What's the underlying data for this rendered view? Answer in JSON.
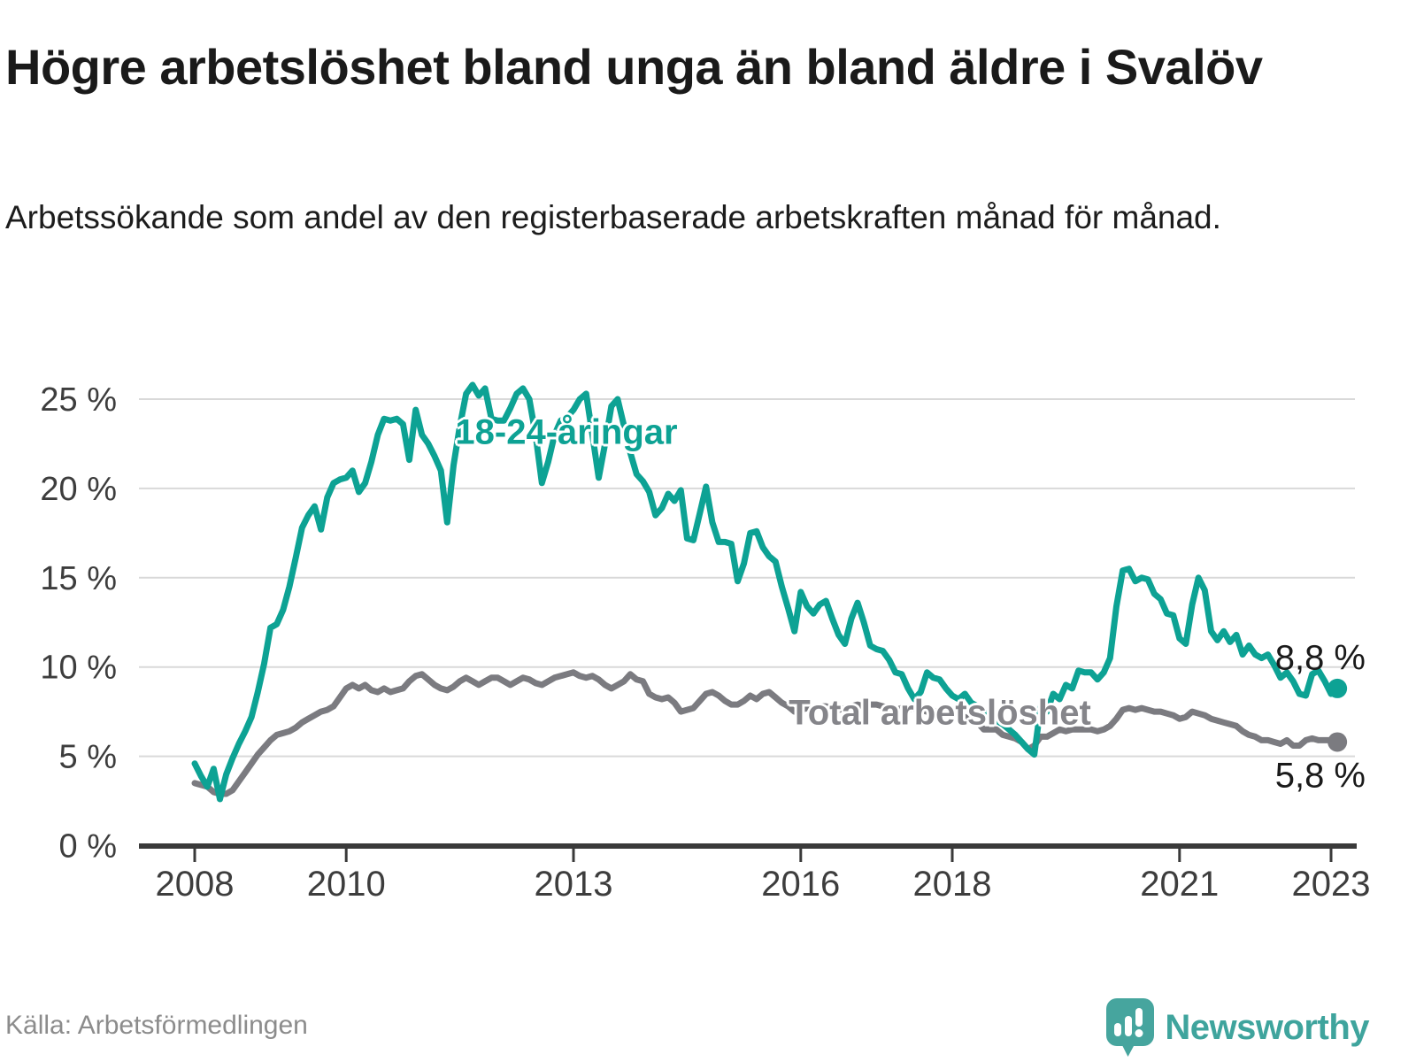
{
  "page": {
    "title": "Högre arbetslöshet bland unga än bland äldre i Svalöv",
    "subtitle": "Arbetssökande som andel av den registerbaserade arbetskraften månad för månad.",
    "source": "Källa: Arbetsförmedlingen",
    "brand": "Newsworthy"
  },
  "colors": {
    "accent_teal": "#0da294",
    "line_gray": "#7b7b80",
    "series_label_gray": "#85858a",
    "grid": "#d9d9d9",
    "axis": "#3a3a3a",
    "tick_text": "#3d3d3d",
    "text_dark": "#1a1a1a",
    "source_text": "#8c8c8c",
    "logo_teal": "#3fa49d"
  },
  "chart_data": {
    "type": "line",
    "unit": "%",
    "frequency": "monthly",
    "x_start": {
      "year": 2008,
      "month": 1
    },
    "x_end": {
      "year": 2023,
      "month": 2
    },
    "ylim": [
      0,
      26.5
    ],
    "grid": "horizontal",
    "legend_position": "inline-labels",
    "y_ticks": [
      {
        "value": 0,
        "label": "0 %"
      },
      {
        "value": 5,
        "label": "5 %"
      },
      {
        "value": 10,
        "label": "10 %"
      },
      {
        "value": 15,
        "label": "15 %"
      },
      {
        "value": 20,
        "label": "20 %"
      },
      {
        "value": 25,
        "label": "25 %"
      }
    ],
    "x_ticks": [
      {
        "year": 2008,
        "label": "2008"
      },
      {
        "year": 2010,
        "label": "2010"
      },
      {
        "year": 2013,
        "label": "2013"
      },
      {
        "year": 2016,
        "label": "2016"
      },
      {
        "year": 2018,
        "label": "2018"
      },
      {
        "year": 2021,
        "label": "2021"
      },
      {
        "year": 2023,
        "label": "2023"
      }
    ],
    "series": [
      {
        "name": "Total arbetslöshet",
        "color": "#7b7b80",
        "label_color": "#85858a",
        "end_value": 5.8,
        "end_label": "5,8 %",
        "values": [
          3.5,
          3.4,
          3.3,
          3.0,
          2.9,
          2.9,
          3.1,
          3.6,
          4.1,
          4.6,
          5.1,
          5.5,
          5.9,
          6.2,
          6.3,
          6.4,
          6.6,
          6.9,
          7.1,
          7.3,
          7.5,
          7.6,
          7.8,
          8.3,
          8.8,
          9.0,
          8.8,
          9.0,
          8.7,
          8.6,
          8.8,
          8.6,
          8.7,
          8.8,
          9.2,
          9.5,
          9.6,
          9.3,
          9.0,
          8.8,
          8.7,
          8.9,
          9.2,
          9.4,
          9.2,
          9.0,
          9.2,
          9.4,
          9.4,
          9.2,
          9.0,
          9.2,
          9.4,
          9.3,
          9.1,
          9.0,
          9.2,
          9.4,
          9.5,
          9.6,
          9.7,
          9.5,
          9.4,
          9.5,
          9.3,
          9.0,
          8.8,
          9.0,
          9.2,
          9.6,
          9.3,
          9.2,
          8.5,
          8.3,
          8.2,
          8.3,
          8.0,
          7.5,
          7.6,
          7.7,
          8.1,
          8.5,
          8.6,
          8.4,
          8.1,
          7.9,
          7.9,
          8.1,
          8.4,
          8.2,
          8.5,
          8.6,
          8.3,
          8.0,
          7.8,
          7.5,
          7.6,
          7.7,
          7.7,
          7.8,
          7.8,
          7.7,
          7.6,
          7.7,
          7.8,
          7.9,
          7.8,
          7.9,
          7.9,
          7.8,
          7.7,
          7.6,
          7.7,
          7.6,
          7.7,
          7.6,
          7.5,
          7.5,
          7.5,
          7.5,
          7.5,
          7.4,
          7.2,
          7.0,
          6.9,
          6.5,
          6.5,
          6.5,
          6.2,
          6.1,
          6.0,
          5.8,
          5.4,
          5.6,
          6.1,
          6.1,
          6.3,
          6.5,
          6.4,
          6.5,
          6.5,
          6.5,
          6.5,
          6.4,
          6.5,
          6.7,
          7.1,
          7.6,
          7.7,
          7.6,
          7.7,
          7.6,
          7.5,
          7.5,
          7.4,
          7.3,
          7.1,
          7.2,
          7.5,
          7.4,
          7.3,
          7.1,
          7.0,
          6.9,
          6.8,
          6.7,
          6.4,
          6.2,
          6.1,
          5.9,
          5.9,
          5.8,
          5.7,
          5.9,
          5.6,
          5.6,
          5.9,
          6.0,
          5.9,
          5.9,
          5.9,
          5.8
        ]
      },
      {
        "name": "18-24-åringar",
        "color": "#0da294",
        "label_color": "#0da294",
        "end_value": 8.8,
        "end_label": "8,8 %",
        "values": [
          4.6,
          3.9,
          3.3,
          4.3,
          2.6,
          4.0,
          4.9,
          5.7,
          6.4,
          7.2,
          8.6,
          10.2,
          12.2,
          12.4,
          13.2,
          14.5,
          16.1,
          17.8,
          18.5,
          19.0,
          17.7,
          19.5,
          20.3,
          20.5,
          20.6,
          21.0,
          19.8,
          20.3,
          21.5,
          23.0,
          23.9,
          23.8,
          23.9,
          23.6,
          21.6,
          24.4,
          23.0,
          22.5,
          21.8,
          21.0,
          18.1,
          21.3,
          23.5,
          25.3,
          25.8,
          25.2,
          25.6,
          23.9,
          23.8,
          23.8,
          24.5,
          25.3,
          25.6,
          25.0,
          23.0,
          20.3,
          21.5,
          23.0,
          23.8,
          24.0,
          24.4,
          25.0,
          25.3,
          23.0,
          20.6,
          22.5,
          24.6,
          25.0,
          23.5,
          22.0,
          20.8,
          20.4,
          19.8,
          18.5,
          18.9,
          19.7,
          19.3,
          19.9,
          17.2,
          17.1,
          18.6,
          20.1,
          18.1,
          17.0,
          17.0,
          16.9,
          14.8,
          15.8,
          17.5,
          17.6,
          16.7,
          16.2,
          15.9,
          14.5,
          13.3,
          12.0,
          14.2,
          13.4,
          13.0,
          13.5,
          13.7,
          12.7,
          11.8,
          11.3,
          12.7,
          13.6,
          12.5,
          11.2,
          11.0,
          10.9,
          10.4,
          9.7,
          9.6,
          8.8,
          8.2,
          8.6,
          9.7,
          9.4,
          9.3,
          8.8,
          8.4,
          8.2,
          8.5,
          8.0,
          7.8,
          7.5,
          7.2,
          7.0,
          6.8,
          6.5,
          6.2,
          5.8,
          5.4,
          5.1,
          7.8,
          7.5,
          8.5,
          8.2,
          9.0,
          8.8,
          9.8,
          9.7,
          9.7,
          9.3,
          9.7,
          10.5,
          13.4,
          15.4,
          15.5,
          14.8,
          15.0,
          14.9,
          14.1,
          13.8,
          13.0,
          12.9,
          11.6,
          11.3,
          13.5,
          15.0,
          14.3,
          12.0,
          11.5,
          12.0,
          11.4,
          11.8,
          10.7,
          11.2,
          10.7,
          10.5,
          10.7,
          10.1,
          9.4,
          9.7,
          9.2,
          8.5,
          8.4,
          9.6,
          9.8,
          9.2,
          8.5,
          8.8
        ]
      }
    ]
  }
}
